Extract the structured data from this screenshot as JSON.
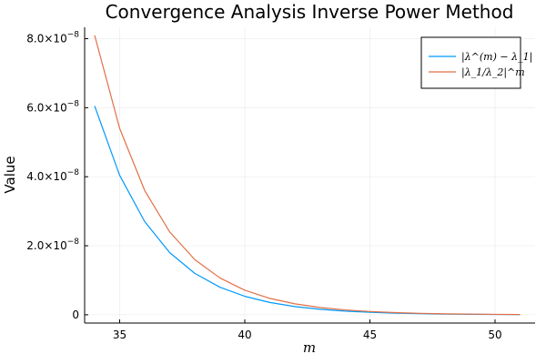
{
  "chart_data": {
    "type": "line",
    "title": "Convergence Analysis Inverse Power Method",
    "xlabel": "m",
    "ylabel": "Value",
    "xlim": [
      33.6,
      51.6
    ],
    "ylim": [
      -2.4e-09,
      8.33e-08
    ],
    "grid": true,
    "legend_position": "top-right",
    "x_ticks": [
      35,
      40,
      45,
      50
    ],
    "x_tick_labels": [
      "35",
      "40",
      "45",
      "50"
    ],
    "y_ticks": [
      0,
      2e-08,
      4e-08,
      6e-08,
      8e-08
    ],
    "y_tick_labels": [
      {
        "mantissa": "0",
        "exponent": ""
      },
      {
        "mantissa": "2.0×10",
        "exponent": "−8"
      },
      {
        "mantissa": "4.0×10",
        "exponent": "−8"
      },
      {
        "mantissa": "6.0×10",
        "exponent": "−8"
      },
      {
        "mantissa": "8.0×10",
        "exponent": "−8"
      }
    ],
    "series": [
      {
        "name": "|λ^(m) − λ_1|",
        "color": "#009AFA",
        "x": [
          34,
          35,
          36,
          37,
          38,
          39,
          40,
          41,
          42,
          43,
          44,
          45,
          46,
          47,
          48,
          49,
          50,
          51
        ],
        "values": [
          6.05e-08,
          4.04e-08,
          2.7e-08,
          1.8e-08,
          1.2e-08,
          8e-09,
          5.35e-09,
          3.57e-09,
          2.38e-09,
          1.59e-09,
          1.06e-09,
          7.1e-10,
          4.7e-10,
          3.2e-10,
          2.1e-10,
          1.4e-10,
          9e-11,
          6e-11
        ]
      },
      {
        "name": "|λ_1/λ_2|^m",
        "color": "#E26F46",
        "x": [
          34,
          35,
          36,
          37,
          38,
          39,
          40,
          41,
          42,
          43,
          44,
          45,
          46,
          47,
          48,
          49,
          50,
          51
        ],
        "values": [
          8.1e-08,
          5.4e-08,
          3.6e-08,
          2.4e-08,
          1.6e-08,
          1.07e-08,
          7.1e-09,
          4.75e-09,
          3.17e-09,
          2.11e-09,
          1.41e-09,
          9.4e-10,
          6.3e-10,
          4.2e-10,
          2.8e-10,
          1.9e-10,
          1.2e-10,
          8e-11
        ]
      }
    ]
  }
}
